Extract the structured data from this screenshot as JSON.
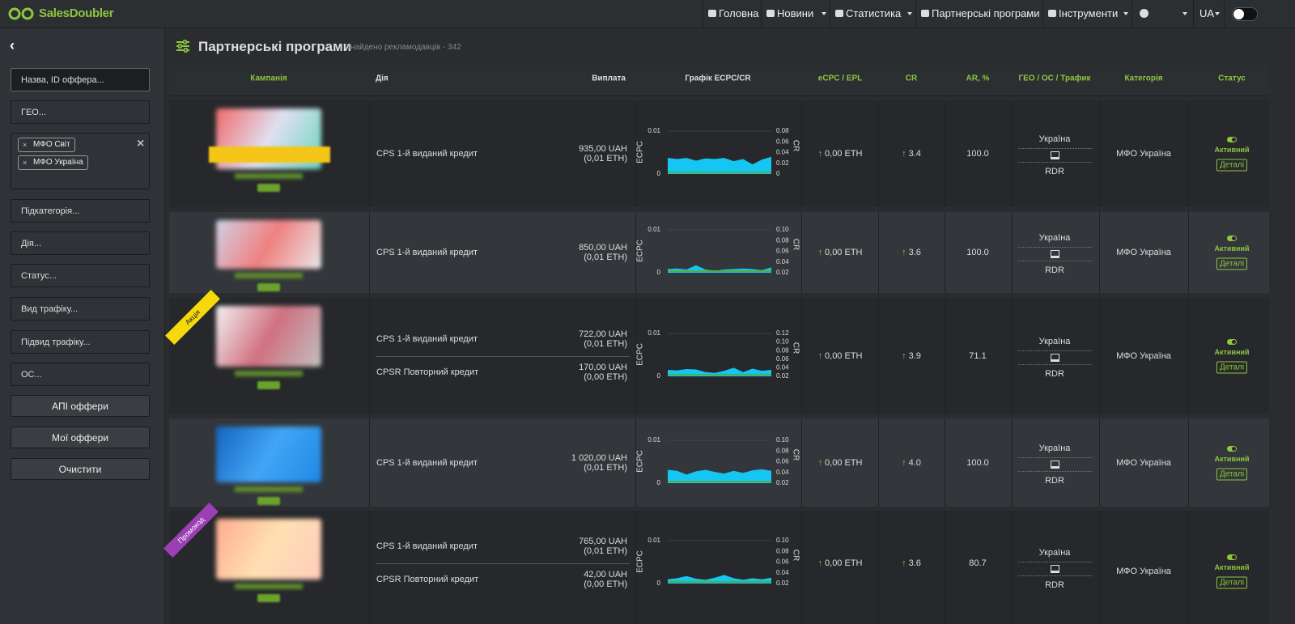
{
  "nav": {
    "logo": "SalesDoubler",
    "items": [
      "Головна",
      "Новини",
      "Статистика",
      "Партнерські програми",
      "Інструменти"
    ],
    "lang": "UA"
  },
  "sidebar": {
    "search": "Назва, ID оффера...",
    "geo": "ГЕО...",
    "tags": [
      "МФО Світ",
      "МФО Україна"
    ],
    "filters": [
      "Підкатегорія...",
      "Дія...",
      "Статус...",
      "Вид трафіку...",
      "Підвид трафіку...",
      "ОС..."
    ],
    "buttons": [
      "АПІ оффери",
      "Мої оффери",
      "Очистити"
    ]
  },
  "header": {
    "title": "Партнерські програми",
    "subtitle": "Знайдено рекламодавців - 342"
  },
  "table": {
    "columns": [
      "Кампанія",
      "Дія",
      "Виплата",
      "Графік ECPC/CR",
      "eCPC / EPL",
      "CR",
      "AR, %",
      "ГЕО / ОС / Трафик",
      "Категорія",
      "Статус"
    ],
    "rows": [
      {
        "actions": [
          {
            "name": "CPS 1-й виданий кредит",
            "payout": "935,00 UAH",
            "payout_eth": "(0,01 ETH)"
          }
        ],
        "chart": {
          "left_ticks": [
            "0.01",
            "0"
          ],
          "right_ticks": [
            "0.08",
            "0.06",
            "0.04",
            "0.02",
            "0"
          ],
          "y_label": "ECPC",
          "y2_label": "CR",
          "cr_values": [
            0.03,
            0.028,
            0.03,
            0.025,
            0.029,
            0.028,
            0.03,
            0.024,
            0.028,
            0.018,
            0.027,
            0.032
          ]
        },
        "ecpc": "0,00 ETH",
        "cr": "3.4",
        "ar": "100.0",
        "geo": "Україна",
        "traffic": "RDR",
        "category": "МФО Україна",
        "status": "Активний",
        "details": "Деталі"
      },
      {
        "actions": [
          {
            "name": "CPS 1-й виданий кредит",
            "payout": "850,00 UAH",
            "payout_eth": "(0,01 ETH)"
          }
        ],
        "chart": {
          "left_ticks": [
            "0.01",
            "0"
          ],
          "right_ticks": [
            "0.10",
            "0.08",
            "0.06",
            "0.04",
            "0.02"
          ],
          "y_label": "ECPC",
          "y2_label": "CR",
          "cr_values": [
            0.027,
            0.028,
            0.026,
            0.034,
            0.026,
            0.024,
            0.026,
            0.027,
            0.028,
            0.027,
            0.025,
            0.03
          ]
        },
        "ecpc": "0,00 ETH",
        "cr": "3.6",
        "ar": "100.0",
        "geo": "Україна",
        "traffic": "RDR",
        "category": "МФО Україна",
        "status": "Активний",
        "details": "Деталі"
      },
      {
        "ribbon": "Акція",
        "actions": [
          {
            "name": "CPS 1-й виданий кредит",
            "payout": "722,00 UAH",
            "payout_eth": "(0,01 ETH)"
          },
          {
            "name": "CPSR Повторний кредит",
            "payout": "170,00 UAH",
            "payout_eth": "(0,00 ETH)"
          }
        ],
        "chart": {
          "left_ticks": [
            "0.01",
            "0"
          ],
          "right_ticks": [
            "0.12",
            "0.10",
            "0.08",
            "0.06",
            "0.04",
            "0.02"
          ],
          "y_label": "ECPC",
          "y2_label": "CR",
          "cr_values": [
            0.035,
            0.034,
            0.037,
            0.036,
            0.03,
            0.028,
            0.033,
            0.04,
            0.03,
            0.038,
            0.033,
            0.035
          ]
        },
        "ecpc": "0,00 ETH",
        "cr": "3.9",
        "ar": "71.1",
        "geo": "Україна",
        "traffic": "RDR",
        "category": "МФО Україна",
        "status": "Активний",
        "details": "Деталі"
      },
      {
        "actions": [
          {
            "name": "CPS 1-й виданий кредит",
            "payout": "1 020,00 UAH",
            "payout_eth": "(0,01 ETH)"
          }
        ],
        "chart": {
          "left_ticks": [
            "0.01",
            "0"
          ],
          "right_ticks": [
            "0.10",
            "0.08",
            "0.06",
            "0.04",
            "0.02"
          ],
          "y_label": "ECPC",
          "y2_label": "CR",
          "cr_values": [
            0.045,
            0.043,
            0.036,
            0.042,
            0.045,
            0.041,
            0.038,
            0.043,
            0.039,
            0.044,
            0.046,
            0.043
          ]
        },
        "ecpc": "0,00 ETH",
        "cr": "4.0",
        "ar": "100.0",
        "geo": "Україна",
        "traffic": "RDR",
        "category": "МФО Україна",
        "status": "Активний",
        "details": "Деталі"
      },
      {
        "ribbon": "Промокод",
        "actions": [
          {
            "name": "CPS 1-й виданий кредит",
            "payout": "765,00 UAH",
            "payout_eth": "(0,01 ETH)"
          },
          {
            "name": "CPSR Повторний кредит",
            "payout": "42,00 UAH",
            "payout_eth": "(0,00 ETH)"
          }
        ],
        "chart": {
          "left_ticks": [
            "0.01",
            "0"
          ],
          "right_ticks": [
            "0.10",
            "0.08",
            "0.06",
            "0.04",
            "0.02"
          ],
          "y_label": "ECPC",
          "y2_label": "CR",
          "cr_values": [
            0.028,
            0.03,
            0.034,
            0.029,
            0.027,
            0.031,
            0.036,
            0.03,
            0.027,
            0.03,
            0.028,
            0.031
          ]
        },
        "ecpc": "0,00 ETH",
        "cr": "3.6",
        "ar": "80.7",
        "geo": "Україна",
        "traffic": "RDR",
        "category": "МФО Україна",
        "status": "Активний",
        "details": "Деталі"
      }
    ]
  }
}
